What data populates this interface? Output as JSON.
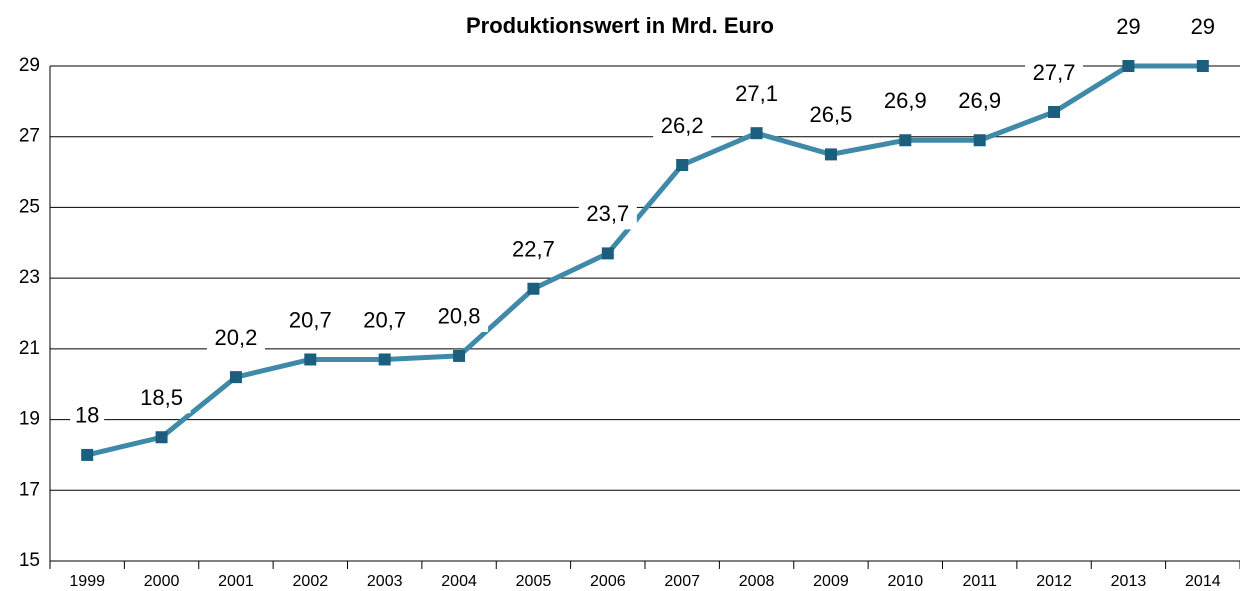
{
  "chart_data": {
    "type": "line",
    "title": "Produktionswert in Mrd. Euro",
    "categories": [
      "1999",
      "2000",
      "2001",
      "2002",
      "2003",
      "2004",
      "2005",
      "2006",
      "2007",
      "2008",
      "2009",
      "2010",
      "2011",
      "2012",
      "2013",
      "2014"
    ],
    "series": [
      {
        "name": "Produktionswert",
        "color": "#3f8aa8",
        "marker_color": "#1b5e7e",
        "values": [
          18,
          18.5,
          20.2,
          20.7,
          20.7,
          20.8,
          22.7,
          23.7,
          26.2,
          27.1,
          26.5,
          26.9,
          26.9,
          27.7,
          29,
          29
        ],
        "value_labels": [
          "18",
          "18,5",
          "20,2",
          "20,7",
          "20,7",
          "20,8",
          "22,7",
          "23,7",
          "26,2",
          "27,1",
          "26,5",
          "26,9",
          "26,9",
          "27,7",
          "29",
          "29"
        ]
      }
    ],
    "ylim": [
      15,
      29
    ],
    "yticks": [
      15,
      17,
      19,
      21,
      23,
      25,
      27,
      29
    ],
    "grid": true
  }
}
